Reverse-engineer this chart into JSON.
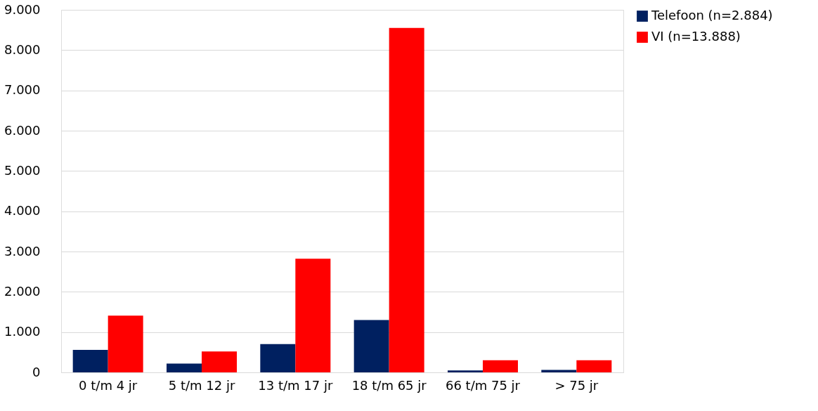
{
  "chart_data": {
    "type": "bar",
    "categories": [
      "0 t/m 4 jr",
      "5 t/m 12 jr",
      "13 t/m 17 jr",
      "18 t/m 65 jr",
      "66 t/m 75 jr",
      "> 75 jr"
    ],
    "series": [
      {
        "name": "Telefoon (n=2.884)",
        "color": "#002060",
        "values": [
          560,
          220,
          700,
          1300,
          50,
          60
        ]
      },
      {
        "name": "VI (n=13.888)",
        "color": "#ff0000",
        "values": [
          1410,
          520,
          2820,
          8550,
          300,
          300
        ]
      }
    ],
    "ylim": [
      0,
      9000
    ],
    "yticks": [
      0,
      {
        "value": 1000,
        "label": "1.000"
      },
      {
        "value": 2000,
        "label": "2.000"
      },
      {
        "value": 3000,
        "label": "3.000"
      },
      {
        "value": 4000,
        "label": "4.000"
      },
      {
        "value": 5000,
        "label": "5.000"
      },
      {
        "value": 6000,
        "label": "6.000"
      },
      {
        "value": 7000,
        "label": "7.000"
      },
      {
        "value": 8000,
        "label": "8.000"
      },
      {
        "value": 9000,
        "label": "9.000"
      }
    ],
    "grid": "y",
    "legend": "right"
  }
}
